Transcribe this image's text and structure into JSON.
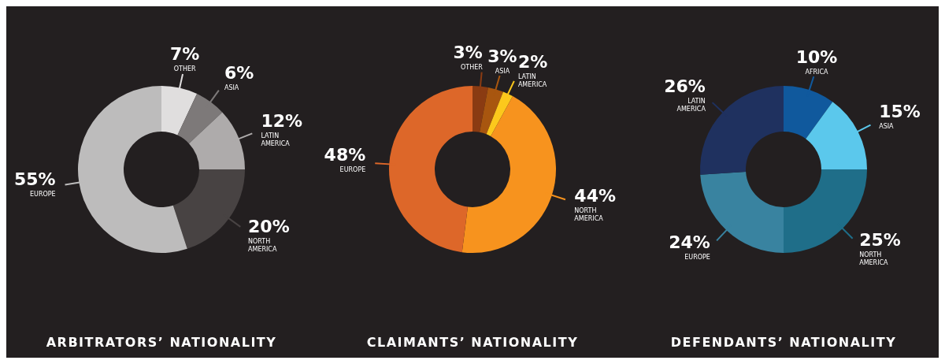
{
  "chart_data": [
    {
      "type": "donut",
      "title": "ARBITRATORS’ NATIONALITY",
      "categories": [
        "OTHER",
        "ASIA",
        "LATIN AMERICA",
        "NORTH AMERICA",
        "EUROPE"
      ],
      "values": [
        7,
        6,
        12,
        20,
        55
      ],
      "value_labels": [
        "7%",
        "6%",
        "12%",
        "20%",
        "55%"
      ],
      "colors": [
        "#e0dede",
        "#7d7979",
        "#aeabab",
        "#484343",
        "#bdbcbc"
      ]
    },
    {
      "type": "donut",
      "title": "CLAIMANTS’ NATIONALITY",
      "categories": [
        "OTHER",
        "ASIA",
        "LATIN AMERICA",
        "NORTH AMERICA",
        "EUROPE"
      ],
      "values": [
        3,
        3,
        2,
        44,
        48
      ],
      "value_labels": [
        "3%",
        "3%",
        "2%",
        "44%",
        "48%"
      ],
      "colors": [
        "#8a3b12",
        "#a8560f",
        "#fcc81c",
        "#f7931e",
        "#dd6729"
      ]
    },
    {
      "type": "donut",
      "title": "DEFENDANTS’ NATIONALITY",
      "categories": [
        "AFRICA",
        "ASIA",
        "NORTH AMERICA",
        "EUROPE",
        "LATIN AMERICA"
      ],
      "values": [
        10,
        15,
        25,
        24,
        26
      ],
      "value_labels": [
        "10%",
        "15%",
        "25%",
        "24%",
        "26%"
      ],
      "colors": [
        "#10599d",
        "#5bc8ec",
        "#1f6e89",
        "#3983a0",
        "#1f315f"
      ]
    }
  ]
}
